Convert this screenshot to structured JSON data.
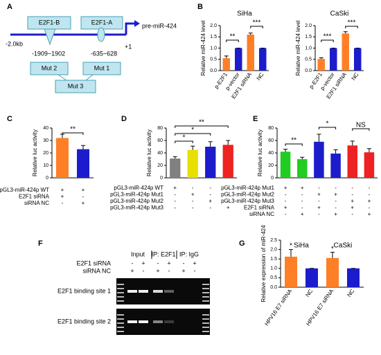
{
  "panel_labels": [
    "A",
    "B",
    "C",
    "D",
    "E",
    "F",
    "G"
  ],
  "diagram": {
    "sites": [
      "E2F1-B",
      "E2F1-A"
    ],
    "gene": "pre-miR-424",
    "start": "-2.0kb",
    "tss": "+1",
    "positions": [
      "-1909~1902",
      "-635~628"
    ],
    "mutants": [
      "Mut 2",
      "Mut 1",
      "Mut 3"
    ]
  },
  "gel": {
    "groups": [
      "Input",
      "IP: E2F1",
      "IP: IgG"
    ],
    "treatments": [
      {
        "label": "E2F1 siRNA",
        "signs": [
          "-",
          "+",
          "-",
          "+",
          "-",
          "+"
        ]
      },
      {
        "label": "siRNA NC",
        "signs": [
          "+",
          "-",
          "+",
          "-",
          "+",
          "-"
        ]
      }
    ],
    "rows": [
      "E2F1 binding site 1",
      "E2F1 binding site 2"
    ]
  },
  "chart_data": [
    {
      "type": "bar",
      "title": "SiHa",
      "y_label": "Relative miR-424 level",
      "categories": [
        "p-E2F1",
        "p-vector",
        "E2F1 siRNA",
        "NC"
      ],
      "values": [
        0.55,
        1.0,
        1.6,
        1.0
      ],
      "errors": [
        0.1,
        0,
        0.07,
        0
      ],
      "colors": [
        "#ff7f27",
        "#1c1ccc",
        "#ff7f27",
        "#1c1ccc"
      ],
      "ylim": [
        0,
        2
      ],
      "yticks": [
        {
          "value": 0,
          "label": "0.0"
        },
        0.5,
        {
          "value": 1,
          "label": "1.0"
        },
        1.5,
        {
          "value": 2,
          "label": "2.0"
        }
      ],
      "annotations": [
        "**",
        "***"
      ]
    },
    {
      "type": "bar",
      "title": "CaSki",
      "y_label": "Relative miR-424 level",
      "categories": [
        "p-E2F1",
        "p-vector",
        "E2F1 siRNA",
        "NC"
      ],
      "values": [
        0.52,
        1.0,
        1.65,
        1.0
      ],
      "errors": [
        0.05,
        0,
        0.08,
        0
      ],
      "colors": [
        "#ff7f27",
        "#1c1ccc",
        "#ff7f27",
        "#1c1ccc"
      ],
      "ylim": [
        0,
        2
      ],
      "yticks": [
        {
          "value": 0,
          "label": "0.0"
        },
        0.5,
        {
          "value": 1,
          "label": "1.0"
        },
        1.5,
        {
          "value": 2,
          "label": "2.0"
        }
      ],
      "annotations": [
        "***",
        "***"
      ]
    },
    {
      "type": "bar",
      "y_label": "Relative luc activity",
      "values": [
        32,
        23
      ],
      "errors": [
        3,
        3
      ],
      "colors": [
        "#ff7f27",
        "#1c1ccc"
      ],
      "ylim": [
        0,
        40
      ],
      "yticks": [
        0,
        10,
        20,
        30,
        40
      ],
      "annotations": [
        "**"
      ],
      "conditions": [
        {
          "label": "pGL3-miR-424p WT",
          "signs": [
            "+",
            "+"
          ]
        },
        {
          "label": "E2F1 siRNA",
          "signs": [
            "+",
            "-"
          ]
        },
        {
          "label": "siRNA NC",
          "signs": [
            "-",
            "+"
          ]
        }
      ]
    },
    {
      "type": "bar",
      "y_label": "Relative luc activity",
      "values": [
        31,
        45,
        50,
        53
      ],
      "errors": [
        3,
        6,
        8,
        7
      ],
      "colors": [
        "#808080",
        "#e8e000",
        "#1c1ccc",
        "#ee2222"
      ],
      "ylim": [
        0,
        80
      ],
      "yticks": [
        0,
        20,
        40,
        60,
        80
      ],
      "annotations": [
        "*",
        "*",
        "**"
      ],
      "conditions": [
        {
          "label": "pGL3-miR-424p WT",
          "signs": [
            "+",
            "-",
            "-",
            "-"
          ]
        },
        {
          "label": "pGL3-miR-424p Mut1",
          "signs": [
            "-",
            "+",
            "-",
            "-"
          ]
        },
        {
          "label": "pGL3-miR-424p Mut2",
          "signs": [
            "-",
            "-",
            "+",
            "-"
          ]
        },
        {
          "label": "pGL3-miR-424p Mut3",
          "signs": [
            "-",
            "-",
            "-",
            "+"
          ]
        }
      ]
    },
    {
      "type": "bar",
      "y_label": "Relative luc activity",
      "values": [
        42,
        30,
        58,
        39,
        52,
        41
      ],
      "errors": [
        4,
        3,
        12,
        6,
        7,
        6
      ],
      "colors": [
        "#22cc22",
        "#22cc22",
        "#1c1ccc",
        "#1c1ccc",
        "#ee2222",
        "#ee2222"
      ],
      "ylim": [
        0,
        80
      ],
      "yticks": [
        0,
        20,
        40,
        60,
        80
      ],
      "annotations": [
        "**",
        "*",
        "NS"
      ],
      "conditions": [
        {
          "label": "pGL3-miR-424p Mut1",
          "signs": [
            "+",
            "+",
            "-",
            "-",
            "-",
            "-"
          ]
        },
        {
          "label": "pGL3-miR-424p Mut2",
          "signs": [
            "-",
            "-",
            "+",
            "+",
            "-",
            "-"
          ]
        },
        {
          "label": "pGL3-miR-424p Mut3",
          "signs": [
            "-",
            "-",
            "-",
            "-",
            "+",
            "+"
          ]
        },
        {
          "label": "E2F1 siRNA",
          "signs": [
            "+",
            "-",
            "+",
            "-",
            "+",
            "-"
          ]
        },
        {
          "label": "siRNA NC",
          "signs": [
            "-",
            "+",
            "-",
            "+",
            "-",
            "+"
          ]
        }
      ]
    },
    {
      "type": "bar",
      "y_label": "Relative expression of miR-424",
      "groups": [
        "SiHa",
        "CaSki"
      ],
      "categories": [
        "HPV16 E7 siRNA",
        "NC",
        "HPV16 E7 siRNA",
        "NC"
      ],
      "values": [
        1.62,
        1.0,
        1.55,
        1.0
      ],
      "errors": [
        0.38,
        0,
        0.3,
        0
      ],
      "colors": [
        "#ff7f27",
        "#1c1ccc",
        "#ff7f27",
        "#1c1ccc"
      ],
      "ylim": [
        0,
        2.5
      ],
      "yticks": [
        {
          "value": 0,
          "label": "0.0"
        },
        0.5,
        {
          "value": 1,
          "label": "1.0"
        },
        1.5,
        {
          "value": 2,
          "label": "2.0"
        },
        2.5
      ],
      "annotations": [
        "*",
        "*"
      ]
    }
  ]
}
